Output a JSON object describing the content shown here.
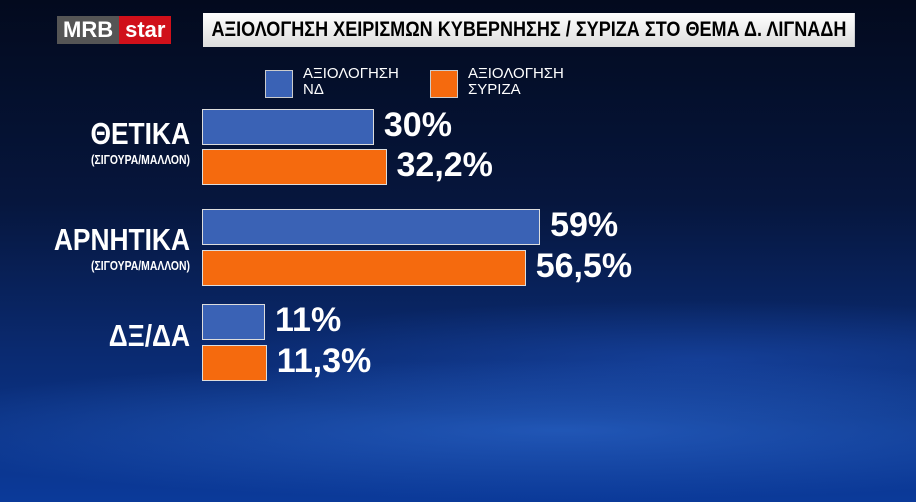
{
  "header": {
    "logo_left": "MRB",
    "logo_right": "star",
    "title": "ΑΞΙΟΛΟΓΗΣΗ  ΧΕΙΡΙΣΜΩΝ ΚΥΒΕΡΝΗΣΗΣ / ΣΥΡΙΖΑ ΣΤΟ ΘΕΜΑ Δ. ΛΙΓΝΑΔΗ"
  },
  "chart_data": {
    "type": "bar",
    "orientation": "horizontal",
    "title": "ΑΞΙΟΛΟΓΗΣΗ  ΧΕΙΡΙΣΜΩΝ ΚΥΒΕΡΝΗΣΗΣ / ΣΥΡΙΖΑ ΣΤΟ ΘΕΜΑ Δ. ΛΙΓΝΑΔΗ",
    "categories": [
      {
        "main": "ΘΕΤΙΚΑ",
        "sub": "(ΣΙΓΟΥΡΑ/ΜΑΛΛΟΝ)"
      },
      {
        "main": "ΑΡΝΗΤΙΚΑ",
        "sub": "(ΣΙΓΟΥΡΑ/ΜΑΛΛΟΝ)"
      },
      {
        "main": "ΔΞ/ΔΑ",
        "sub": ""
      }
    ],
    "series": [
      {
        "name": "ΑΞΙΟΛΟΓΗΣΗ ΝΔ",
        "name_lines": [
          "ΑΞΙΟΛΟΓΗΣΗ",
          "ΝΔ"
        ],
        "color": "#3a62b5",
        "values": [
          30,
          59,
          11
        ],
        "labels": [
          "30%",
          "59%",
          "11%"
        ]
      },
      {
        "name": "ΑΞΙΟΛΟΓΗΣΗ ΣΥΡΙΖΑ",
        "name_lines": [
          "ΑΞΙΟΛΟΓΗΣΗ",
          "ΣΥΡΙΖΑ"
        ],
        "color": "#f56a0e",
        "values": [
          32.2,
          56.5,
          11.3
        ],
        "labels": [
          "32,2%",
          "56,5%",
          "11,3%"
        ]
      }
    ],
    "legend": "top",
    "grid": false,
    "xlim": [
      0,
      100
    ]
  }
}
